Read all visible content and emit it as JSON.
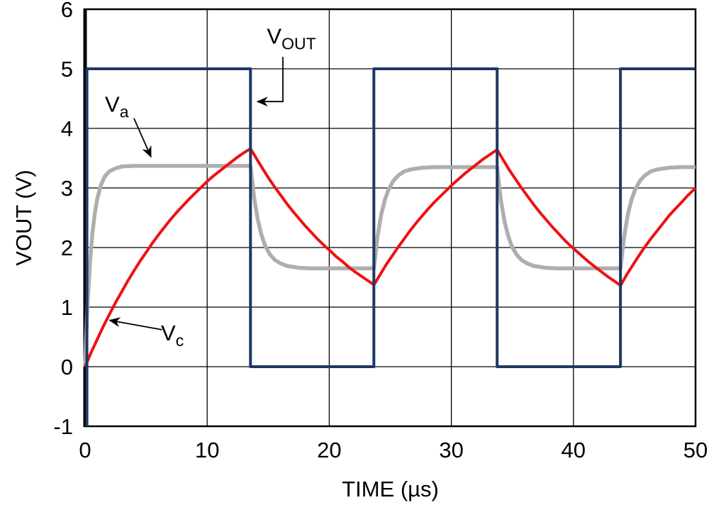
{
  "chart_data": {
    "type": "line",
    "title": "",
    "xlabel": "TIME (µs)",
    "ylabel": "VOUT (V)",
    "xlim": [
      0,
      50
    ],
    "ylim": [
      -1,
      6
    ],
    "xticks": [
      0,
      10,
      20,
      30,
      40,
      50
    ],
    "yticks": [
      -1,
      0,
      1,
      2,
      3,
      4,
      5,
      6
    ],
    "grid": true,
    "grid_color": "#000000",
    "frame_color": "#000000",
    "background": "#ffffff",
    "series": [
      {
        "name": "Va",
        "color": "#aeaeae",
        "width": 5.5,
        "points": [
          [
            0,
            0
          ],
          [
            0.2,
            1.03
          ],
          [
            0.4,
            1.74
          ],
          [
            0.6,
            2.24
          ],
          [
            0.8,
            2.58
          ],
          [
            1,
            2.82
          ],
          [
            1.3,
            3.05
          ],
          [
            1.6,
            3.19
          ],
          [
            2,
            3.28
          ],
          [
            2.5,
            3.33
          ],
          [
            3,
            3.36
          ],
          [
            4,
            3.37
          ],
          [
            6,
            3.37
          ],
          [
            9,
            3.37
          ],
          [
            12,
            3.37
          ],
          [
            13.55,
            3.37
          ],
          [
            13.85,
            2.83
          ],
          [
            14.15,
            2.46
          ],
          [
            14.45,
            2.21
          ],
          [
            14.75,
            2.03
          ],
          [
            15.15,
            1.88
          ],
          [
            15.55,
            1.79
          ],
          [
            16.05,
            1.73
          ],
          [
            16.55,
            1.69
          ],
          [
            17.55,
            1.66
          ],
          [
            18.55,
            1.65
          ],
          [
            20.5,
            1.65
          ],
          [
            22.5,
            1.65
          ],
          [
            23.65,
            1.65
          ],
          [
            23.95,
            2.18
          ],
          [
            24.25,
            2.55
          ],
          [
            24.55,
            2.8
          ],
          [
            24.85,
            2.97
          ],
          [
            25.25,
            3.12
          ],
          [
            25.65,
            3.21
          ],
          [
            26.15,
            3.28
          ],
          [
            26.65,
            3.31
          ],
          [
            27.65,
            3.34
          ],
          [
            28.65,
            3.35
          ],
          [
            30.5,
            3.35
          ],
          [
            32.5,
            3.35
          ],
          [
            33.75,
            3.35
          ],
          [
            34.05,
            2.81
          ],
          [
            34.35,
            2.44
          ],
          [
            34.65,
            2.2
          ],
          [
            34.95,
            2.02
          ],
          [
            35.35,
            1.88
          ],
          [
            35.75,
            1.79
          ],
          [
            36.25,
            1.73
          ],
          [
            36.75,
            1.69
          ],
          [
            37.75,
            1.66
          ],
          [
            38.75,
            1.65
          ],
          [
            40.5,
            1.65
          ],
          [
            42.5,
            1.65
          ],
          [
            43.85,
            1.65
          ],
          [
            44.15,
            2.18
          ],
          [
            44.45,
            2.55
          ],
          [
            44.75,
            2.8
          ],
          [
            45.05,
            2.97
          ],
          [
            45.45,
            3.12
          ],
          [
            45.85,
            3.21
          ],
          [
            46.35,
            3.28
          ],
          [
            46.85,
            3.31
          ],
          [
            47.85,
            3.34
          ],
          [
            48.85,
            3.35
          ],
          [
            50,
            3.35
          ]
        ]
      },
      {
        "name": "Vc",
        "color": "#ee1111",
        "width": 4,
        "points": [
          [
            0,
            0
          ],
          [
            0.5,
            0.24
          ],
          [
            1,
            0.46
          ],
          [
            1.5,
            0.68
          ],
          [
            2,
            0.88
          ],
          [
            2.5,
            1.08
          ],
          [
            3,
            1.26
          ],
          [
            3.5,
            1.44
          ],
          [
            4,
            1.61
          ],
          [
            4.5,
            1.77
          ],
          [
            5,
            1.92
          ],
          [
            5.5,
            2.07
          ],
          [
            6,
            2.21
          ],
          [
            6.5,
            2.34
          ],
          [
            7,
            2.47
          ],
          [
            7.5,
            2.59
          ],
          [
            8,
            2.7
          ],
          [
            8.5,
            2.81
          ],
          [
            9,
            2.91
          ],
          [
            9.5,
            3.01
          ],
          [
            10,
            3.11
          ],
          [
            10.5,
            3.2
          ],
          [
            11,
            3.28
          ],
          [
            11.5,
            3.36
          ],
          [
            12,
            3.44
          ],
          [
            12.5,
            3.52
          ],
          [
            13,
            3.59
          ],
          [
            13.55,
            3.66
          ],
          [
            14.05,
            3.49
          ],
          [
            14.55,
            3.32
          ],
          [
            15.05,
            3.16
          ],
          [
            15.55,
            3.01
          ],
          [
            16.05,
            2.87
          ],
          [
            16.55,
            2.73
          ],
          [
            17.05,
            2.6
          ],
          [
            17.55,
            2.48
          ],
          [
            18.05,
            2.36
          ],
          [
            18.55,
            2.25
          ],
          [
            19.05,
            2.14
          ],
          [
            19.55,
            2.04
          ],
          [
            20.05,
            1.95
          ],
          [
            20.55,
            1.85
          ],
          [
            21.05,
            1.77
          ],
          [
            21.55,
            1.68
          ],
          [
            22.05,
            1.6
          ],
          [
            22.55,
            1.53
          ],
          [
            23.05,
            1.46
          ],
          [
            23.55,
            1.39
          ],
          [
            23.65,
            1.37
          ],
          [
            24.15,
            1.54
          ],
          [
            24.65,
            1.71
          ],
          [
            25.15,
            1.86
          ],
          [
            25.65,
            2.01
          ],
          [
            26.15,
            2.15
          ],
          [
            26.65,
            2.29
          ],
          [
            27.15,
            2.42
          ],
          [
            27.65,
            2.54
          ],
          [
            28.15,
            2.66
          ],
          [
            28.65,
            2.77
          ],
          [
            29.15,
            2.87
          ],
          [
            29.65,
            2.97
          ],
          [
            30.15,
            3.07
          ],
          [
            30.65,
            3.16
          ],
          [
            31.15,
            3.25
          ],
          [
            31.65,
            3.33
          ],
          [
            32.15,
            3.41
          ],
          [
            32.65,
            3.49
          ],
          [
            33.15,
            3.56
          ],
          [
            33.65,
            3.63
          ],
          [
            33.75,
            3.64
          ],
          [
            34.25,
            3.47
          ],
          [
            34.75,
            3.3
          ],
          [
            35.25,
            3.15
          ],
          [
            35.75,
            3.0
          ],
          [
            36.25,
            2.86
          ],
          [
            36.75,
            2.72
          ],
          [
            37.25,
            2.59
          ],
          [
            37.75,
            2.47
          ],
          [
            38.25,
            2.35
          ],
          [
            38.75,
            2.24
          ],
          [
            39.25,
            2.13
          ],
          [
            39.75,
            2.03
          ],
          [
            40.25,
            1.94
          ],
          [
            40.75,
            1.85
          ],
          [
            41.25,
            1.76
          ],
          [
            41.75,
            1.68
          ],
          [
            42.25,
            1.6
          ],
          [
            42.75,
            1.52
          ],
          [
            43.25,
            1.45
          ],
          [
            43.75,
            1.38
          ],
          [
            43.85,
            1.36
          ],
          [
            44.35,
            1.54
          ],
          [
            44.85,
            1.7
          ],
          [
            45.35,
            1.86
          ],
          [
            45.85,
            2.01
          ],
          [
            46.35,
            2.15
          ],
          [
            46.85,
            2.28
          ],
          [
            47.35,
            2.41
          ],
          [
            47.85,
            2.54
          ],
          [
            48.35,
            2.65
          ],
          [
            48.85,
            2.76
          ],
          [
            49.35,
            2.87
          ],
          [
            49.85,
            2.97
          ],
          [
            50,
            3.0
          ]
        ]
      },
      {
        "name": "VOUT",
        "color": "#1f3864",
        "width": 4,
        "points": [
          [
            0.15,
            -1
          ],
          [
            0.15,
            5
          ],
          [
            13.55,
            5
          ],
          [
            13.55,
            0
          ],
          [
            23.65,
            0
          ],
          [
            23.65,
            5
          ],
          [
            33.75,
            5
          ],
          [
            33.75,
            0
          ],
          [
            43.85,
            0
          ],
          [
            43.85,
            5
          ],
          [
            50,
            5
          ]
        ]
      }
    ],
    "annotations": [
      {
        "name": "vout-label",
        "text_main": "V",
        "text_sub": "OUT",
        "label_x": 16.9,
        "label_y": 5.42,
        "arrow": [
          [
            16.2,
            5.2
          ],
          [
            16.2,
            4.45
          ],
          [
            14.1,
            4.45
          ]
        ]
      },
      {
        "name": "va-label",
        "text_main": "V",
        "text_sub": "a",
        "label_x": 2.6,
        "label_y": 4.28,
        "arrow": [
          [
            4.0,
            4.17
          ],
          [
            5.4,
            3.52
          ]
        ]
      },
      {
        "name": "vc-label",
        "text_main": "V",
        "text_sub": "c",
        "label_x": 7.15,
        "label_y": 0.44,
        "arrow": [
          [
            6.3,
            0.62
          ],
          [
            2.0,
            0.78
          ]
        ]
      }
    ]
  }
}
